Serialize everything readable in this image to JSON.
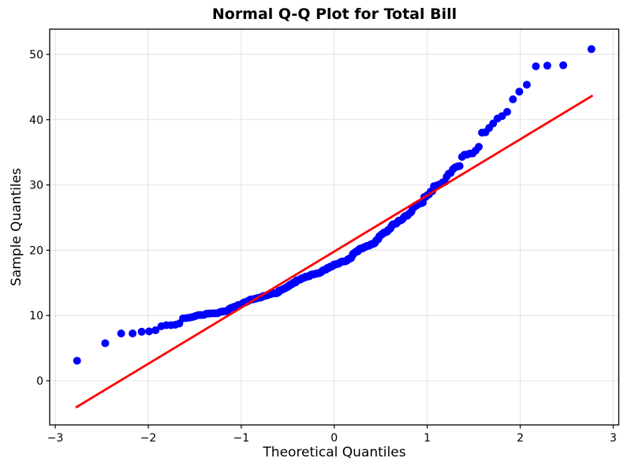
{
  "chart_data": {
    "type": "scatter",
    "title": "Normal Q-Q Plot for Total Bill",
    "xlabel": "Theoretical Quantiles",
    "ylabel": "Sample Quantiles",
    "xlim": [
      -3.06,
      3.06
    ],
    "ylim": [
      -6.76,
      53.86
    ],
    "x_ticks": [
      {
        "v": -3,
        "label": "−3"
      },
      {
        "v": -2,
        "label": "−2"
      },
      {
        "v": -1,
        "label": "−1"
      },
      {
        "v": 0,
        "label": "0"
      },
      {
        "v": 1,
        "label": "1"
      },
      {
        "v": 2,
        "label": "2"
      },
      {
        "v": 3,
        "label": "3"
      }
    ],
    "y_ticks": [
      {
        "v": 0,
        "label": "0"
      },
      {
        "v": 10,
        "label": "10"
      },
      {
        "v": 20,
        "label": "20"
      },
      {
        "v": 30,
        "label": "30"
      },
      {
        "v": 40,
        "label": "40"
      },
      {
        "v": 50,
        "label": "50"
      }
    ],
    "grid": true,
    "legend": "none",
    "background": "#ffffff",
    "axis_color": "#000000",
    "grid_color": "#b0b0b0",
    "grid_opacity": 0.35,
    "point_color": "#0000ff",
    "point_radius": 5,
    "line_color": "#ff0000",
    "line_width": 2.8,
    "n_points": 244,
    "quantile_method": "filliben",
    "fit_line": {
      "x": [
        -2.78,
        2.78
      ],
      "y": [
        -4.1,
        43.7
      ]
    },
    "sample_values": [
      16.99,
      10.34,
      21.01,
      23.68,
      24.59,
      25.29,
      8.77,
      26.88,
      15.04,
      14.78,
      10.27,
      35.26,
      15.42,
      18.43,
      14.83,
      21.58,
      10.33,
      16.29,
      16.97,
      20.65,
      17.92,
      20.29,
      15.77,
      39.42,
      19.82,
      17.81,
      13.37,
      12.69,
      21.7,
      19.65,
      9.55,
      18.35,
      15.06,
      20.69,
      17.78,
      24.06,
      16.31,
      16.93,
      18.69,
      31.27,
      16.04,
      17.46,
      13.94,
      9.68,
      30.4,
      18.29,
      22.23,
      32.4,
      28.55,
      18.04,
      12.54,
      10.29,
      34.81,
      9.94,
      25.56,
      19.49,
      38.01,
      26.41,
      11.24,
      48.27,
      20.29,
      13.81,
      11.02,
      18.29,
      17.59,
      20.08,
      16.45,
      3.07,
      20.23,
      15.01,
      12.02,
      17.07,
      26.86,
      25.28,
      14.73,
      10.51,
      17.92,
      27.2,
      22.76,
      17.29,
      19.44,
      16.66,
      10.07,
      32.68,
      15.98,
      34.83,
      13.03,
      18.28,
      24.71,
      21.16,
      28.97,
      22.49,
      5.75,
      16.32,
      22.75,
      40.17,
      27.28,
      12.03,
      21.01,
      12.46,
      11.35,
      15.38,
      44.3,
      22.42,
      20.92,
      15.36,
      20.49,
      25.21,
      18.24,
      14.31,
      14.0,
      7.25,
      38.07,
      23.95,
      25.71,
      17.31,
      29.93,
      10.65,
      12.43,
      24.08,
      11.69,
      13.42,
      14.26,
      15.95,
      12.48,
      29.8,
      8.52,
      14.52,
      11.38,
      22.82,
      19.08,
      20.27,
      11.17,
      12.26,
      18.26,
      8.51,
      10.33,
      14.15,
      16.0,
      13.16,
      17.47,
      34.3,
      41.19,
      27.05,
      16.43,
      8.35,
      18.64,
      11.87,
      9.78,
      7.51,
      14.07,
      13.13,
      17.26,
      24.55,
      19.77,
      29.85,
      48.17,
      25.0,
      13.39,
      16.49,
      21.5,
      12.66,
      16.21,
      13.81,
      17.51,
      24.52,
      20.76,
      31.71,
      10.59,
      10.63,
      50.81,
      15.81,
      7.25,
      31.85,
      16.82,
      32.9,
      17.89,
      14.48,
      9.6,
      34.63,
      34.65,
      23.33,
      45.35,
      23.17,
      40.55,
      20.69,
      20.9,
      30.46,
      18.15,
      23.1,
      15.69,
      19.81,
      28.44,
      15.48,
      16.58,
      7.56,
      10.34,
      43.11,
      13.0,
      13.51,
      18.71,
      12.74,
      13.0,
      16.4,
      20.53,
      16.47,
      26.59,
      38.73,
      24.27,
      12.76,
      30.06,
      25.89,
      48.33,
      13.27,
      28.17,
      12.9,
      28.15,
      11.59,
      7.74,
      30.14,
      12.16,
      13.42,
      8.58,
      15.98,
      13.42,
      16.27,
      10.09,
      20.45,
      13.28,
      22.12,
      24.01,
      15.69,
      11.61,
      10.77,
      15.53,
      10.07,
      12.6,
      32.83,
      35.83,
      29.03,
      27.18,
      22.67,
      17.82,
      18.78
    ]
  }
}
